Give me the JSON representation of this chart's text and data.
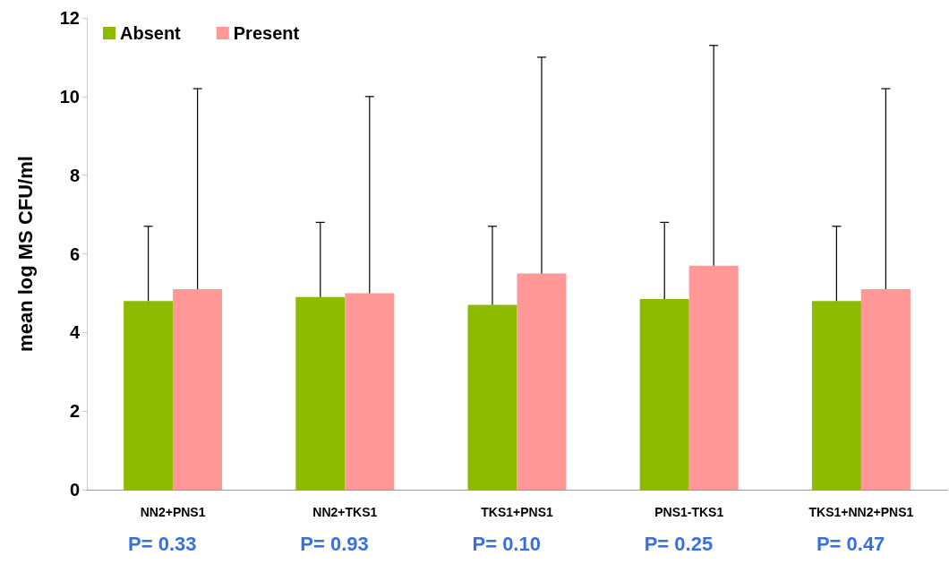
{
  "chart_data": {
    "type": "bar",
    "ylabel": "mean log MS CFU/ml",
    "categories": [
      "NN2+PNS1",
      "NN2+TKS1",
      "TKS1+PNS1",
      "PNS1-TKS1",
      "TKS1+NN2+PNS1"
    ],
    "series": [
      {
        "name": "Absent",
        "color": "#8cbb00",
        "values": [
          4.8,
          4.9,
          4.7,
          4.85,
          4.8
        ],
        "errors": [
          [
            4.8,
            6.7
          ],
          [
            4.9,
            6.8
          ],
          [
            4.7,
            6.7
          ],
          [
            4.85,
            6.8
          ],
          [
            4.8,
            6.7
          ]
        ]
      },
      {
        "name": "Present",
        "color": "#ff9896",
        "values": [
          5.1,
          5.0,
          5.5,
          5.7,
          5.1
        ],
        "errors": [
          [
            5.1,
            10.2
          ],
          [
            5.0,
            10.0
          ],
          [
            5.5,
            11.0
          ],
          [
            5.7,
            11.3
          ],
          [
            5.1,
            10.2
          ]
        ]
      }
    ],
    "ylim": [
      0,
      12
    ],
    "yticks": [
      0,
      2,
      4,
      6,
      8,
      10,
      12
    ],
    "grid": false,
    "legend": "top left",
    "annotations": [
      "P= 0.33",
      "P= 0.93",
      "P= 0.10",
      "P= 0.25",
      "P= 0.47"
    ]
  }
}
